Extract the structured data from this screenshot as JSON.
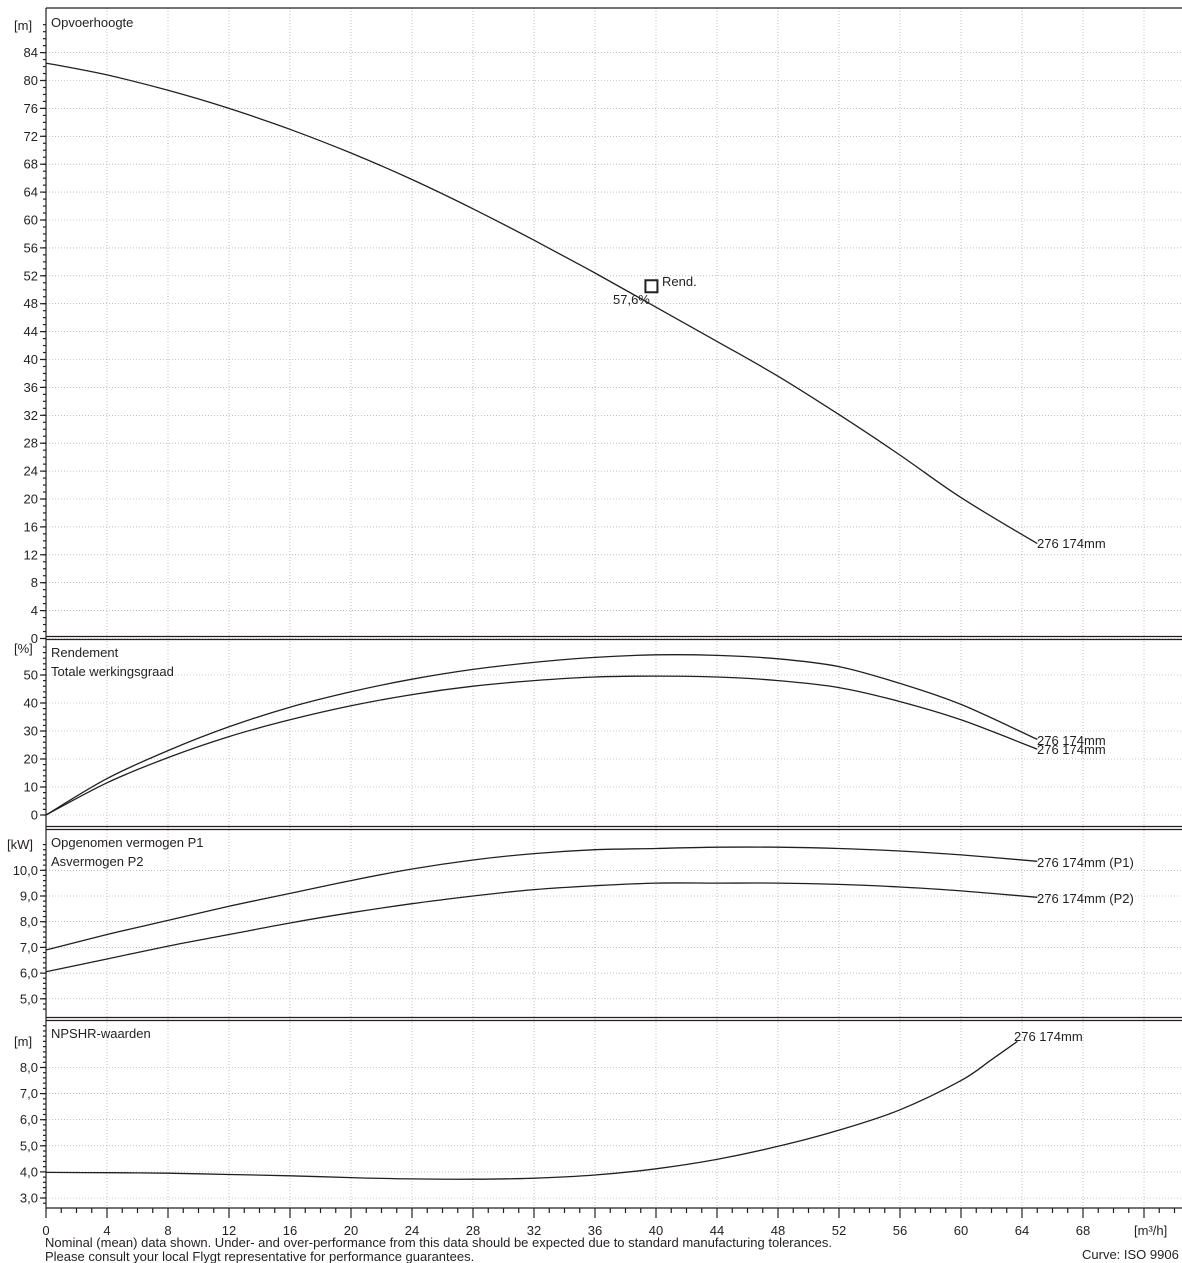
{
  "x_axis": {
    "unit": "[m³/h]",
    "min": 0,
    "max": 74,
    "ticks": [
      0,
      4,
      8,
      12,
      16,
      20,
      24,
      28,
      32,
      36,
      40,
      44,
      48,
      52,
      56,
      60,
      64,
      68
    ]
  },
  "footer": {
    "line1": "Nominal (mean) data shown. Under- and over-performance from this data should be expected due to standard manufacturing tolerances.",
    "line2": "Please consult your local Flygt representative for performance guarantees.",
    "curve_std": "Curve: ISO 9906"
  },
  "chart_data": [
    {
      "type": "line",
      "title": "Opvoerhoogte",
      "ylabel": "[m]",
      "ylim": [
        0,
        88
      ],
      "yticks": [
        "0",
        "4",
        "8",
        "12",
        "16",
        "20",
        "24",
        "28",
        "32",
        "36",
        "40",
        "44",
        "48",
        "52",
        "56",
        "60",
        "64",
        "68",
        "72",
        "76",
        "80",
        "84"
      ],
      "grid": true,
      "series": [
        {
          "name": "276 174mm",
          "x": [
            0,
            4,
            8,
            12,
            16,
            20,
            24,
            28,
            32,
            36,
            40,
            44,
            48,
            52,
            56,
            60,
            65
          ],
          "y": [
            82.5,
            80.8,
            78.6,
            76.0,
            73.0,
            69.6,
            65.8,
            61.6,
            57.1,
            52.4,
            47.5,
            42.6,
            37.6,
            32.1,
            26.3,
            20.2,
            13.6
          ]
        }
      ],
      "operating_point": {
        "label": "Rend.",
        "value_label": "57,6%",
        "x": 39.7,
        "y": 50.5
      }
    },
    {
      "type": "line",
      "title": "Rendement",
      "subtitle": "Totale werkingsgraad",
      "ylabel": "[%]",
      "ylim": [
        0,
        60
      ],
      "yticks": [
        "0",
        "10",
        "20",
        "30",
        "40",
        "50"
      ],
      "grid": true,
      "series": [
        {
          "name": "276 174mm",
          "x": [
            0,
            4,
            8,
            12,
            16,
            20,
            24,
            28,
            32,
            36,
            40,
            44,
            48,
            52,
            56,
            60,
            65
          ],
          "y": [
            0,
            13,
            23,
            31.5,
            38.5,
            44,
            48.5,
            52,
            54.5,
            56.3,
            57.2,
            57,
            55.8,
            53,
            47,
            39.5,
            27
          ]
        },
        {
          "name": "276 174mm",
          "x": [
            0,
            4,
            8,
            12,
            16,
            20,
            24,
            28,
            32,
            36,
            40,
            44,
            48,
            52,
            56,
            60,
            65
          ],
          "y": [
            0,
            11.5,
            20.5,
            28,
            34,
            39,
            43,
            46,
            48,
            49.3,
            49.6,
            49.3,
            48,
            45.5,
            40.5,
            34,
            23.5
          ]
        }
      ]
    },
    {
      "type": "line",
      "title": "Opgenomen vermogen P1",
      "subtitle": "Asvermogen P2",
      "ylabel": "[kW]",
      "ylim": [
        4.2,
        11.1
      ],
      "yticks": [
        "5,0",
        "6,0",
        "7,0",
        "8,0",
        "9,0",
        "10,0"
      ],
      "grid": true,
      "series": [
        {
          "name": "276 174mm (P1)",
          "x": [
            0,
            4,
            8,
            12,
            16,
            20,
            24,
            28,
            32,
            36,
            40,
            44,
            48,
            52,
            56,
            60,
            65
          ],
          "y": [
            6.9,
            7.5,
            8.05,
            8.6,
            9.1,
            9.6,
            10.05,
            10.4,
            10.65,
            10.8,
            10.85,
            10.9,
            10.9,
            10.85,
            10.75,
            10.6,
            10.35
          ]
        },
        {
          "name": "276 174mm (P2)",
          "x": [
            0,
            4,
            8,
            12,
            16,
            20,
            24,
            28,
            32,
            36,
            40,
            44,
            48,
            52,
            56,
            60,
            65
          ],
          "y": [
            6.05,
            6.55,
            7.05,
            7.5,
            7.95,
            8.35,
            8.7,
            9.0,
            9.25,
            9.4,
            9.5,
            9.5,
            9.5,
            9.45,
            9.35,
            9.2,
            8.95
          ]
        }
      ]
    },
    {
      "type": "line",
      "title": "NPSHR-waarden",
      "ylabel": "[m]",
      "ylim": [
        2.6,
        9.6
      ],
      "yticks": [
        "3,0",
        "4,0",
        "5,0",
        "6,0",
        "7,0",
        "8,0"
      ],
      "grid": true,
      "series": [
        {
          "name": "276 174mm",
          "x": [
            0,
            4,
            8,
            12,
            16,
            20,
            24,
            28,
            32,
            36,
            40,
            44,
            48,
            52,
            56,
            60,
            62,
            63.7
          ],
          "y": [
            3.98,
            3.97,
            3.95,
            3.9,
            3.85,
            3.78,
            3.73,
            3.72,
            3.76,
            3.88,
            4.12,
            4.48,
            4.98,
            5.6,
            6.38,
            7.5,
            8.3,
            9.0
          ]
        }
      ]
    }
  ]
}
